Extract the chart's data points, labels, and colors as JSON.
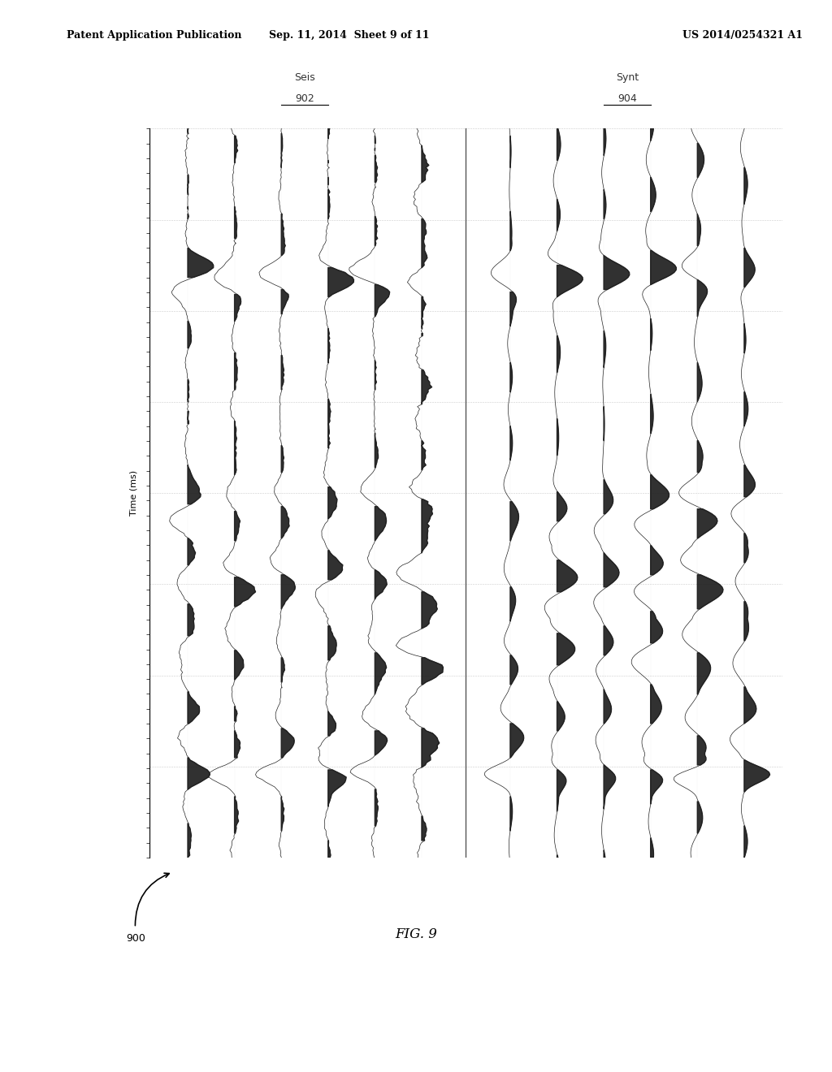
{
  "header_left": "Patent Application Publication",
  "header_center": "Sep. 11, 2014  Sheet 9 of 11",
  "header_right": "US 2014/0254321 A1",
  "label_seis": "Seis",
  "label_synt": "Synt",
  "label_902": "902",
  "label_904": "904",
  "ylabel": "Time (ms)",
  "fig_label": "FIG. 9",
  "ref_900": "900",
  "background_color": "#ffffff",
  "trace_color": "#222222",
  "fill_color": "#1a1a1a",
  "grid_color": "#aaaaaa",
  "n_time_samples": 300,
  "amplitude_scale": 0.55
}
